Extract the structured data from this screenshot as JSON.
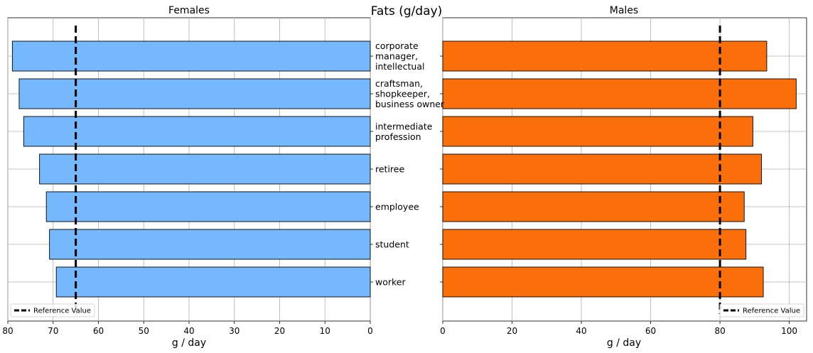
{
  "chart_data": {
    "type": "bar",
    "title": "Fats (g/day)",
    "categories": [
      "corporate\nmanager,\nintellectual",
      "craftsman,\nshopkeeper,\nbusiness owner",
      "intermediate\nprofession",
      "retiree",
      "employee",
      "student",
      "worker"
    ],
    "panels": [
      {
        "title": "Females",
        "xlabel": "g / day",
        "xlim": [
          80,
          0
        ],
        "xticks": [
          80,
          70,
          60,
          50,
          40,
          30,
          20,
          10,
          0
        ],
        "inverted": true,
        "color": "#75b8fd",
        "values": [
          79,
          77.5,
          76.5,
          73,
          71.5,
          70.8,
          69.3
        ],
        "reference_value": 65,
        "legend": {
          "label": "Reference Value",
          "position": "bottom-left"
        }
      },
      {
        "title": "Males",
        "xlabel": "g / day",
        "xlim": [
          0,
          105
        ],
        "xticks": [
          0,
          20,
          40,
          60,
          80,
          100
        ],
        "inverted": false,
        "color": "#fb6f0b",
        "values": [
          93.5,
          102,
          89.5,
          92,
          87,
          87.5,
          92.5
        ],
        "reference_value": 80,
        "legend": {
          "label": "Reference Value",
          "position": "bottom-right"
        }
      }
    ],
    "grid": true
  }
}
